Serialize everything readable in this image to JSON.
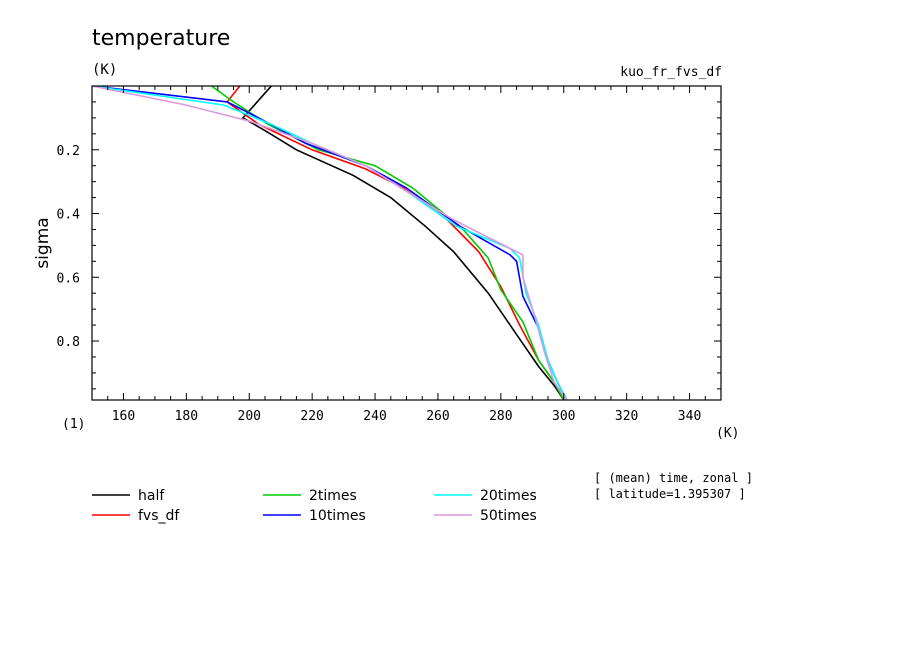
{
  "chart_data": {
    "type": "line",
    "title": "temperature",
    "units": "(K)",
    "experiment": "kuo_fr_fvs_df",
    "ylabel": "sigma",
    "y_units": "(1)",
    "x_units": "(K)",
    "xlim": [
      150,
      350
    ],
    "ylim": [
      0.0,
      0.985
    ],
    "y_inverted": true,
    "x_ticks": [
      160,
      180,
      200,
      220,
      240,
      260,
      280,
      300,
      320,
      340
    ],
    "y_ticks": [
      0.2,
      0.4,
      0.6,
      0.8
    ],
    "notes": [
      "[ (mean) time, zonal ]",
      "[ latitude=1.395307 ]"
    ],
    "legend_position": "bottom",
    "series": [
      {
        "name": "half",
        "color": "#000000",
        "points": [
          [
            207,
            0.0
          ],
          [
            198,
            0.1
          ],
          [
            205,
            0.14
          ],
          [
            215,
            0.2
          ],
          [
            233,
            0.28
          ],
          [
            245,
            0.35
          ],
          [
            256,
            0.44
          ],
          [
            265,
            0.52
          ],
          [
            276,
            0.65
          ],
          [
            285,
            0.78
          ],
          [
            292,
            0.88
          ],
          [
            297,
            0.94
          ],
          [
            300,
            0.985
          ]
        ]
      },
      {
        "name": "fvs_df",
        "color": "#ff0000",
        "points": [
          [
            197,
            0.0
          ],
          [
            193,
            0.05
          ],
          [
            203,
            0.12
          ],
          [
            220,
            0.2
          ],
          [
            237,
            0.26
          ],
          [
            249,
            0.32
          ],
          [
            263,
            0.42
          ],
          [
            273,
            0.52
          ],
          [
            280,
            0.63
          ],
          [
            286,
            0.75
          ],
          [
            292,
            0.86
          ],
          [
            297,
            0.93
          ],
          [
            300,
            0.985
          ]
        ]
      },
      {
        "name": "2times",
        "color": "#00cc00",
        "points": [
          [
            188,
            0.0
          ],
          [
            195,
            0.05
          ],
          [
            206,
            0.12
          ],
          [
            222,
            0.2
          ],
          [
            240,
            0.25
          ],
          [
            252,
            0.32
          ],
          [
            268,
            0.45
          ],
          [
            276,
            0.54
          ],
          [
            280,
            0.64
          ],
          [
            287,
            0.74
          ],
          [
            292,
            0.86
          ],
          [
            297,
            0.93
          ],
          [
            300,
            0.985
          ]
        ]
      },
      {
        "name": "10times",
        "color": "#0000ff",
        "points": [
          [
            150,
            0.0
          ],
          [
            193,
            0.05
          ],
          [
            203,
            0.1
          ],
          [
            218,
            0.18
          ],
          [
            237,
            0.25
          ],
          [
            250,
            0.32
          ],
          [
            267,
            0.44
          ],
          [
            283,
            0.53
          ],
          [
            285,
            0.55
          ],
          [
            287,
            0.66
          ],
          [
            292,
            0.76
          ],
          [
            295,
            0.86
          ],
          [
            298,
            0.93
          ],
          [
            301,
            0.985
          ]
        ]
      },
      {
        "name": "20times",
        "color": "#00ffff",
        "points": [
          [
            150,
            0.0
          ],
          [
            192,
            0.06
          ],
          [
            207,
            0.12
          ],
          [
            220,
            0.18
          ],
          [
            237,
            0.25
          ],
          [
            250,
            0.33
          ],
          [
            266,
            0.44
          ],
          [
            283,
            0.51
          ],
          [
            286,
            0.54
          ],
          [
            288,
            0.65
          ],
          [
            292,
            0.75
          ],
          [
            295,
            0.86
          ],
          [
            298,
            0.93
          ],
          [
            301,
            0.985
          ]
        ]
      },
      {
        "name": "50times",
        "color": "#dd99dd",
        "points": [
          [
            150,
            0.0
          ],
          [
            180,
            0.06
          ],
          [
            200,
            0.11
          ],
          [
            220,
            0.18
          ],
          [
            237,
            0.25
          ],
          [
            250,
            0.33
          ],
          [
            265,
            0.42
          ],
          [
            287,
            0.53
          ],
          [
            287,
            0.6
          ],
          [
            291,
            0.73
          ],
          [
            294,
            0.84
          ],
          [
            297,
            0.93
          ],
          [
            301,
            0.985
          ]
        ]
      }
    ]
  }
}
